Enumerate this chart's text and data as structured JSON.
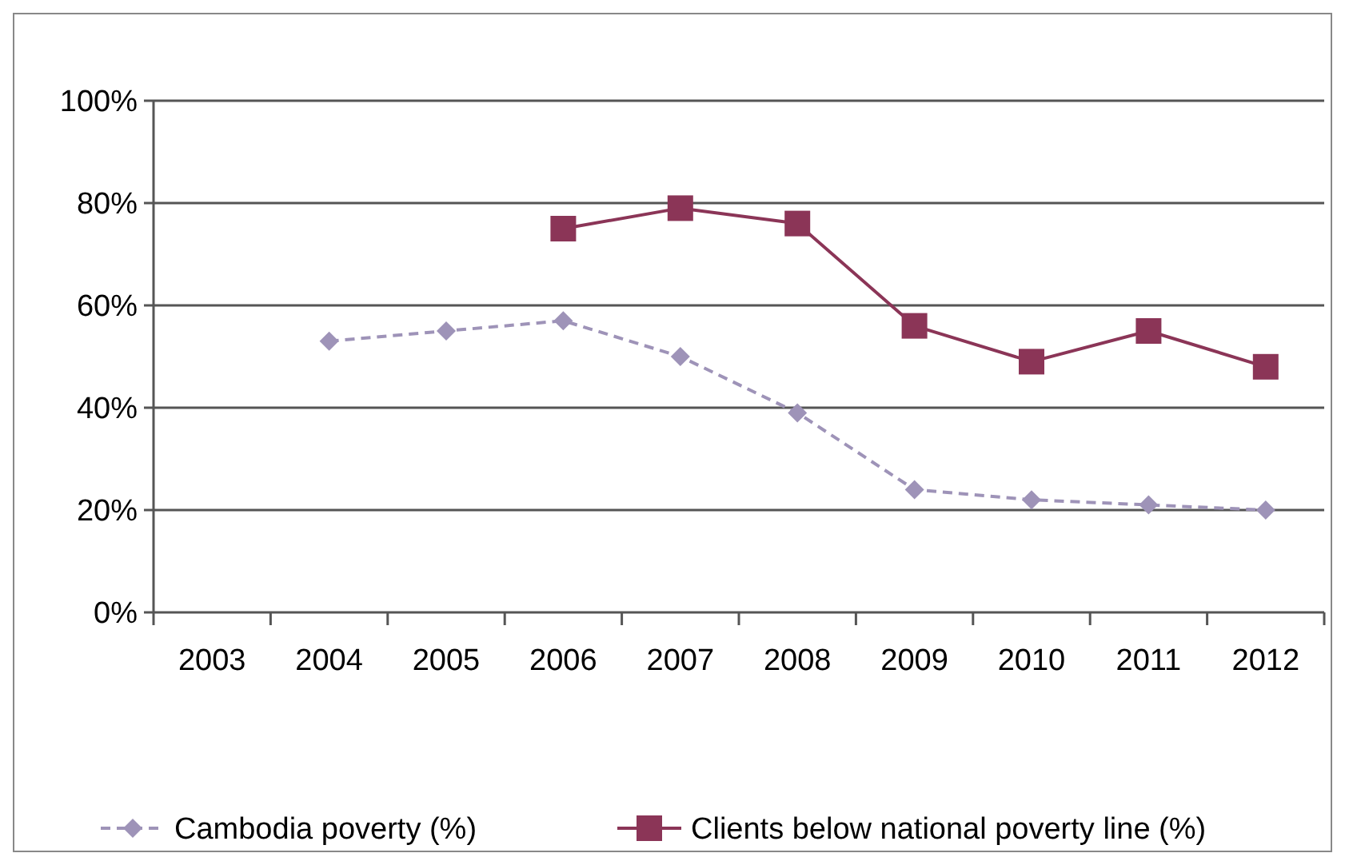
{
  "chart_data": {
    "type": "line",
    "categories": [
      "2003",
      "2004",
      "2005",
      "2006",
      "2007",
      "2008",
      "2009",
      "2010",
      "2011",
      "2012"
    ],
    "ylim": [
      0,
      100
    ],
    "yticks": [
      {
        "value": 0,
        "label": "0%"
      },
      {
        "value": 20,
        "label": "20%"
      },
      {
        "value": 40,
        "label": "40%"
      },
      {
        "value": 60,
        "label": "60%"
      },
      {
        "value": 80,
        "label": "80%"
      },
      {
        "value": 100,
        "label": "100%"
      }
    ],
    "grid": "y",
    "legend": "bottom",
    "series": [
      {
        "name": "Cambodia poverty (%)",
        "color": "#9e93b8",
        "marker": "diamond",
        "line_style": "dashed",
        "values": [
          null,
          53,
          55,
          57,
          50,
          39,
          24,
          22,
          21,
          20
        ]
      },
      {
        "name": "Clients below national poverty line (%)",
        "color": "#8b3557",
        "marker": "square",
        "line_style": "solid",
        "values": [
          null,
          null,
          null,
          75,
          79,
          76,
          56,
          49,
          55,
          48
        ]
      }
    ]
  }
}
